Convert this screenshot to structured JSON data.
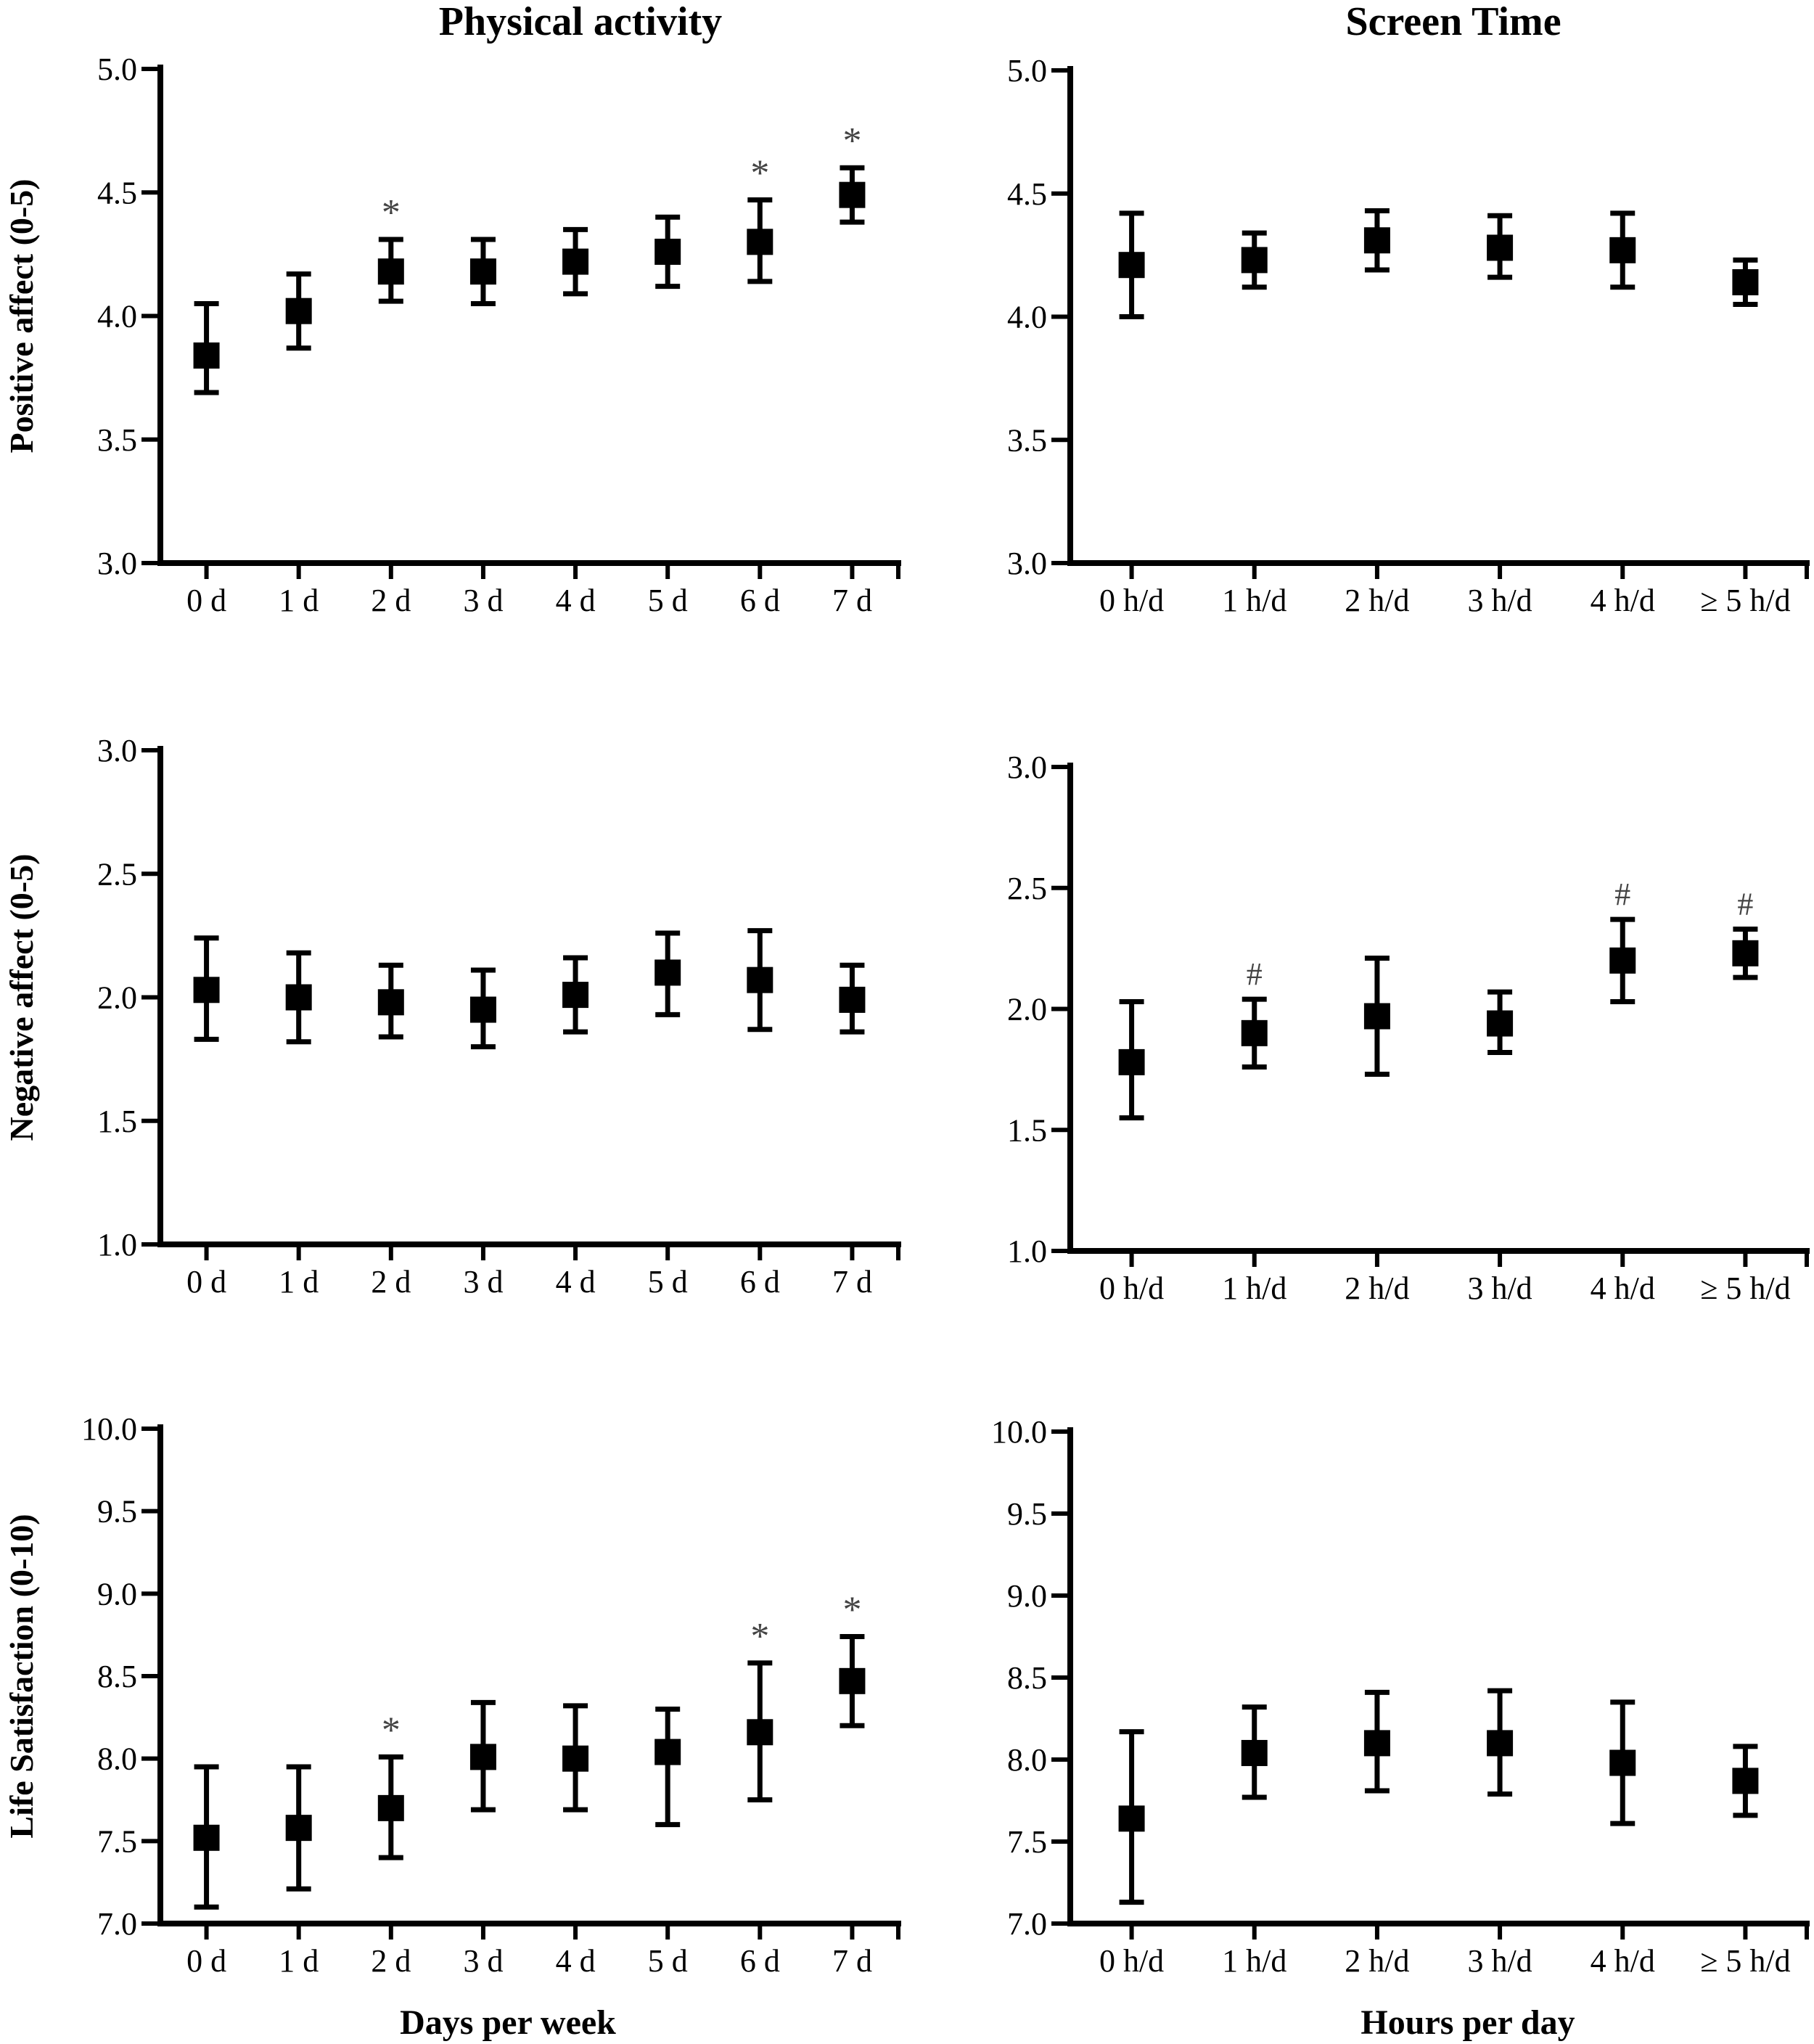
{
  "column_titles": [
    "Physical activity",
    "Screen Time"
  ],
  "x_axis_titles": [
    "Days per week",
    "Hours per day"
  ],
  "chart_data": [
    {
      "type": "scatter",
      "ylabel": "Positive affect (0-5)",
      "ylim": [
        3.0,
        5.0
      ],
      "yticks": [
        "3.0",
        "3.5",
        "4.0",
        "4.5",
        "5.0"
      ],
      "categories": [
        "0 d",
        "1 d",
        "2 d",
        "3 d",
        "4 d",
        "5 d",
        "6 d",
        "7 d"
      ],
      "values": [
        3.84,
        4.02,
        4.18,
        4.18,
        4.22,
        4.26,
        4.3,
        4.49
      ],
      "error_low": [
        3.69,
        3.87,
        4.06,
        4.05,
        4.09,
        4.12,
        4.14,
        4.38
      ],
      "error_high": [
        4.05,
        4.17,
        4.31,
        4.31,
        4.35,
        4.4,
        4.47,
        4.6
      ],
      "annotations": [
        "",
        "",
        "*",
        "",
        "",
        "",
        "*",
        "*"
      ]
    },
    {
      "type": "scatter",
      "ylabel": "",
      "ylim": [
        3.0,
        5.0
      ],
      "yticks": [
        "3.0",
        "3.5",
        "4.0",
        "4.5",
        "5.0"
      ],
      "categories": [
        "0 h/d",
        "1 h/d",
        "2 h/d",
        "3 h/d",
        "4 h/d",
        "≥ 5 h/d"
      ],
      "values": [
        4.21,
        4.23,
        4.31,
        4.28,
        4.27,
        4.14
      ],
      "error_low": [
        4.0,
        4.12,
        4.19,
        4.16,
        4.12,
        4.05
      ],
      "error_high": [
        4.42,
        4.34,
        4.43,
        4.41,
        4.42,
        4.23
      ],
      "annotations": [
        "",
        "",
        "",
        "",
        "",
        ""
      ]
    },
    {
      "type": "scatter",
      "ylabel": "Negative affect (0-5)",
      "ylim": [
        1.0,
        3.0
      ],
      "yticks": [
        "1.0",
        "1.5",
        "2.0",
        "2.5",
        "3.0"
      ],
      "categories": [
        "0 d",
        "1 d",
        "2 d",
        "3 d",
        "4 d",
        "5 d",
        "6 d",
        "7 d"
      ],
      "values": [
        2.03,
        2.0,
        1.98,
        1.95,
        2.01,
        2.1,
        2.07,
        1.99
      ],
      "error_low": [
        1.83,
        1.82,
        1.84,
        1.8,
        1.86,
        1.93,
        1.87,
        1.86
      ],
      "error_high": [
        2.24,
        2.18,
        2.13,
        2.11,
        2.16,
        2.26,
        2.27,
        2.13
      ],
      "annotations": [
        "",
        "",
        "",
        "",
        "",
        "",
        "",
        ""
      ]
    },
    {
      "type": "scatter",
      "ylabel": "",
      "ylim": [
        1.0,
        3.0
      ],
      "yticks": [
        "1.0",
        "1.5",
        "2.0",
        "2.5",
        "3.0"
      ],
      "categories": [
        "0 h/d",
        "1 h/d",
        "2 h/d",
        "3 h/d",
        "4 h/d",
        "≥ 5 h/d"
      ],
      "values": [
        1.78,
        1.9,
        1.97,
        1.94,
        2.2,
        2.23
      ],
      "error_low": [
        1.55,
        1.76,
        1.73,
        1.82,
        2.03,
        2.13
      ],
      "error_high": [
        2.03,
        2.04,
        2.21,
        2.07,
        2.37,
        2.33
      ],
      "annotations": [
        "",
        "#",
        "",
        "",
        "#",
        "#"
      ]
    },
    {
      "type": "scatter",
      "ylabel": "Life Satisfaction (0-10)",
      "ylim": [
        7.0,
        10.0
      ],
      "yticks": [
        "7.0",
        "7.5",
        "8.0",
        "8.5",
        "9.0",
        "9.5",
        "10.0"
      ],
      "categories": [
        "0 d",
        "1 d",
        "2 d",
        "3 d",
        "4 d",
        "5 d",
        "6 d",
        "7 d"
      ],
      "values": [
        7.52,
        7.58,
        7.7,
        8.01,
        8.0,
        8.04,
        8.16,
        8.47
      ],
      "error_low": [
        7.1,
        7.21,
        7.4,
        7.69,
        7.69,
        7.6,
        7.75,
        8.2
      ],
      "error_high": [
        7.95,
        7.95,
        8.01,
        8.34,
        8.32,
        8.3,
        8.58,
        8.74
      ],
      "annotations": [
        "",
        "",
        "*",
        "",
        "",
        "",
        "*",
        "*"
      ]
    },
    {
      "type": "scatter",
      "ylabel": "",
      "ylim": [
        7.0,
        10.0
      ],
      "yticks": [
        "7.0",
        "7.5",
        "8.0",
        "8.5",
        "9.0",
        "9.5",
        "10.0"
      ],
      "categories": [
        "0 h/d",
        "1 h/d",
        "2 h/d",
        "3 h/d",
        "4 h/d",
        "≥ 5 h/d"
      ],
      "values": [
        7.64,
        8.04,
        8.1,
        8.1,
        7.98,
        7.87
      ],
      "error_low": [
        7.13,
        7.77,
        7.81,
        7.79,
        7.61,
        7.66
      ],
      "error_high": [
        8.17,
        8.32,
        8.41,
        8.42,
        8.35,
        8.08
      ],
      "annotations": [
        "",
        "",
        "",
        "",
        "",
        ""
      ]
    }
  ]
}
